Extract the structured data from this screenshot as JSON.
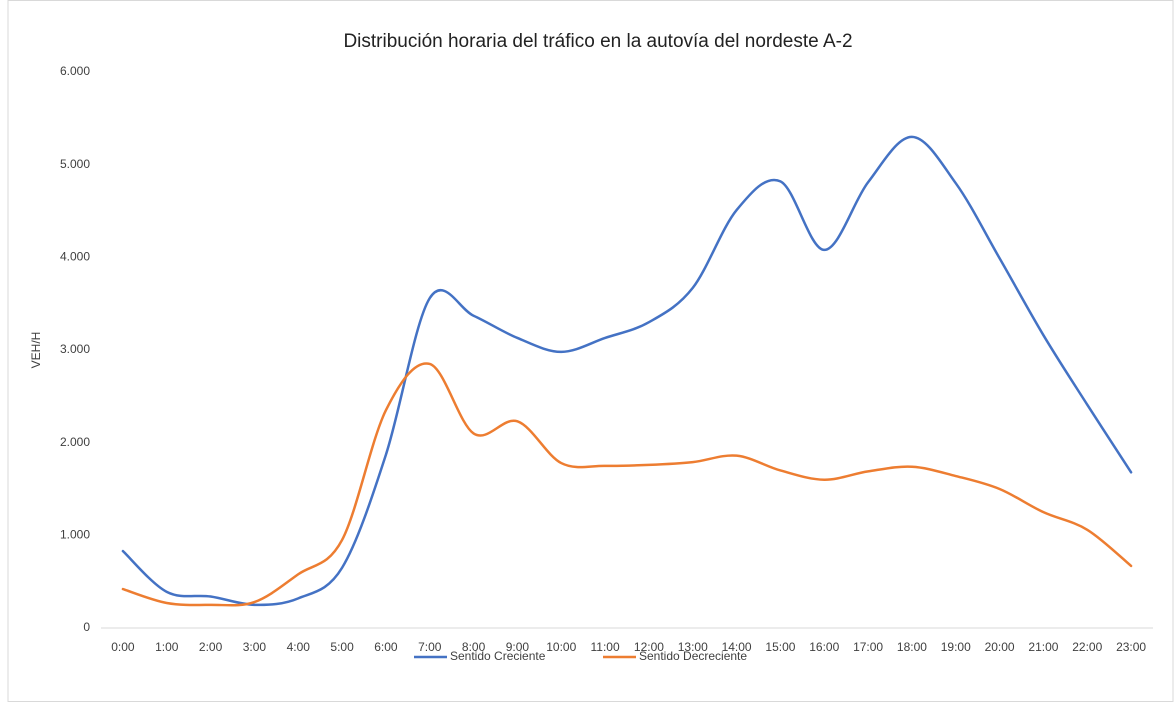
{
  "chart_data": {
    "type": "line",
    "title": "Distribución horaria del tráfico en la autovía del nordeste A-2",
    "y_label": "VEH/H",
    "categories": [
      "0:00",
      "1:00",
      "2:00",
      "3:00",
      "4:00",
      "5:00",
      "6:00",
      "7:00",
      "8:00",
      "9:00",
      "10:00",
      "11:00",
      "12:00",
      "13:00",
      "14:00",
      "15:00",
      "16:00",
      "17:00",
      "18:00",
      "19:00",
      "20:00",
      "21:00",
      "22:00",
      "23:00"
    ],
    "series": [
      {
        "name": "Sentido Creciente",
        "color": "#4472c4",
        "values": [
          830,
          390,
          340,
          250,
          320,
          650,
          1870,
          3560,
          3370,
          3130,
          2980,
          3130,
          3300,
          3670,
          4510,
          4820,
          4080,
          4810,
          5300,
          4800,
          3990,
          3160,
          2410,
          1680
        ]
      },
      {
        "name": "Sentido Decreciente",
        "color": "#ed7d31",
        "values": [
          420,
          270,
          250,
          280,
          580,
          950,
          2350,
          2850,
          2100,
          2230,
          1780,
          1750,
          1760,
          1790,
          1860,
          1700,
          1600,
          1690,
          1740,
          1640,
          1500,
          1250,
          1060,
          670
        ]
      }
    ],
    "ylim": [
      0,
      6000
    ],
    "yticks": [
      0,
      {
        "value": 1000,
        "label": "1.000"
      },
      {
        "value": 2000,
        "label": "2.000"
      },
      {
        "value": 3000,
        "label": "3.000"
      },
      {
        "value": 4000,
        "label": "4.000"
      },
      {
        "value": 5000,
        "label": "5.000"
      },
      {
        "value": 6000,
        "label": "6.000"
      }
    ],
    "smooth": true,
    "legend": "bottom"
  }
}
